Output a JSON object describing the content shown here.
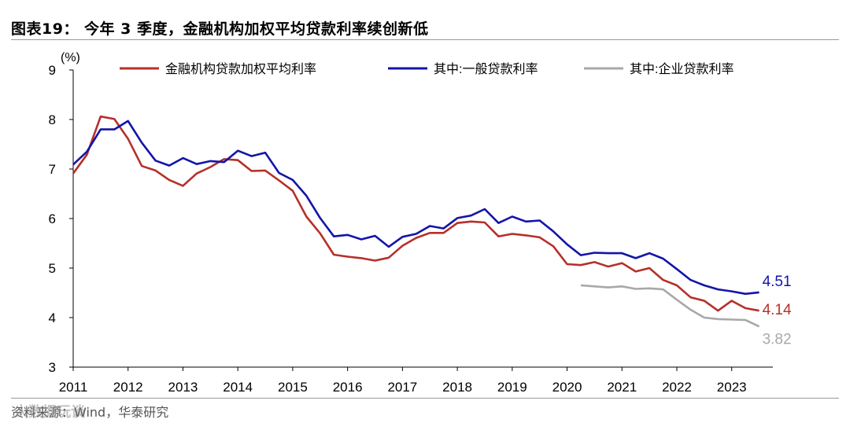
{
  "figure": {
    "title": "图表19： 今年 3 季度，金融机构加权平均贷款利率续创新低",
    "source": "资料来源：Wind，华泰研究",
    "watermark": "人数据玩谈"
  },
  "colors": {
    "series1": "#b5302a",
    "series2": "#1414a8",
    "series3": "#a8a8a8"
  },
  "chart_data": {
    "type": "line",
    "title": "今年 3 季度，金融机构加权平均贷款利率续创新低",
    "ylabel": "(%)",
    "xlabel": "",
    "ylim": [
      3,
      9
    ],
    "yticks": [
      3,
      4,
      5,
      6,
      7,
      8,
      9
    ],
    "x_range": [
      2011.0,
      2023.75
    ],
    "xticks": [
      2011,
      2012,
      2013,
      2014,
      2015,
      2016,
      2017,
      2018,
      2019,
      2020,
      2021,
      2022,
      2023
    ],
    "legend_position": "top",
    "series": [
      {
        "name": "金融机构贷款加权平均利率",
        "color_key": "series1",
        "end_label": "4.14",
        "points": [
          [
            2011.0,
            6.91
          ],
          [
            2011.25,
            7.29
          ],
          [
            2011.5,
            8.06
          ],
          [
            2011.75,
            8.01
          ],
          [
            2012.0,
            7.61
          ],
          [
            2012.25,
            7.06
          ],
          [
            2012.5,
            6.97
          ],
          [
            2012.75,
            6.78
          ],
          [
            2013.0,
            6.66
          ],
          [
            2013.25,
            6.91
          ],
          [
            2013.5,
            7.04
          ],
          [
            2013.75,
            7.2
          ],
          [
            2014.0,
            7.18
          ],
          [
            2014.25,
            6.96
          ],
          [
            2014.5,
            6.97
          ],
          [
            2014.75,
            6.77
          ],
          [
            2015.0,
            6.56
          ],
          [
            2015.25,
            6.04
          ],
          [
            2015.5,
            5.7
          ],
          [
            2015.75,
            5.27
          ],
          [
            2016.0,
            5.23
          ],
          [
            2016.25,
            5.2
          ],
          [
            2016.5,
            5.15
          ],
          [
            2016.75,
            5.21
          ],
          [
            2017.0,
            5.45
          ],
          [
            2017.25,
            5.61
          ],
          [
            2017.5,
            5.71
          ],
          [
            2017.75,
            5.71
          ],
          [
            2018.0,
            5.91
          ],
          [
            2018.25,
            5.94
          ],
          [
            2018.5,
            5.92
          ],
          [
            2018.75,
            5.64
          ],
          [
            2019.0,
            5.69
          ],
          [
            2019.25,
            5.66
          ],
          [
            2019.5,
            5.62
          ],
          [
            2019.75,
            5.44
          ],
          [
            2020.0,
            5.08
          ],
          [
            2020.25,
            5.06
          ],
          [
            2020.5,
            5.12
          ],
          [
            2020.75,
            5.03
          ],
          [
            2021.0,
            5.1
          ],
          [
            2021.25,
            4.93
          ],
          [
            2021.5,
            5.0
          ],
          [
            2021.75,
            4.76
          ],
          [
            2022.0,
            4.65
          ],
          [
            2022.25,
            4.41
          ],
          [
            2022.5,
            4.34
          ],
          [
            2022.75,
            4.14
          ],
          [
            2023.0,
            4.34
          ],
          [
            2023.25,
            4.19
          ],
          [
            2023.5,
            4.14
          ]
        ]
      },
      {
        "name": "其中:一般贷款利率",
        "color_key": "series2",
        "end_label": "4.51",
        "points": [
          [
            2011.0,
            7.09
          ],
          [
            2011.25,
            7.35
          ],
          [
            2011.5,
            7.8
          ],
          [
            2011.75,
            7.8
          ],
          [
            2012.0,
            7.97
          ],
          [
            2012.25,
            7.53
          ],
          [
            2012.5,
            7.17
          ],
          [
            2012.75,
            7.07
          ],
          [
            2013.0,
            7.22
          ],
          [
            2013.25,
            7.1
          ],
          [
            2013.5,
            7.16
          ],
          [
            2013.75,
            7.14
          ],
          [
            2014.0,
            7.37
          ],
          [
            2014.25,
            7.26
          ],
          [
            2014.5,
            7.33
          ],
          [
            2014.75,
            6.92
          ],
          [
            2015.0,
            6.78
          ],
          [
            2015.25,
            6.46
          ],
          [
            2015.5,
            6.01
          ],
          [
            2015.75,
            5.64
          ],
          [
            2016.0,
            5.67
          ],
          [
            2016.25,
            5.58
          ],
          [
            2016.5,
            5.65
          ],
          [
            2016.75,
            5.43
          ],
          [
            2017.0,
            5.63
          ],
          [
            2017.25,
            5.69
          ],
          [
            2017.5,
            5.85
          ],
          [
            2017.75,
            5.8
          ],
          [
            2018.0,
            6.01
          ],
          [
            2018.25,
            6.06
          ],
          [
            2018.5,
            6.19
          ],
          [
            2018.75,
            5.91
          ],
          [
            2019.0,
            6.04
          ],
          [
            2019.25,
            5.94
          ],
          [
            2019.5,
            5.96
          ],
          [
            2019.75,
            5.74
          ],
          [
            2020.0,
            5.48
          ],
          [
            2020.25,
            5.26
          ],
          [
            2020.5,
            5.31
          ],
          [
            2020.75,
            5.3
          ],
          [
            2021.0,
            5.3
          ],
          [
            2021.25,
            5.2
          ],
          [
            2021.5,
            5.3
          ],
          [
            2021.75,
            5.19
          ],
          [
            2022.0,
            4.98
          ],
          [
            2022.25,
            4.76
          ],
          [
            2022.5,
            4.65
          ],
          [
            2022.75,
            4.57
          ],
          [
            2023.0,
            4.53
          ],
          [
            2023.25,
            4.48
          ],
          [
            2023.5,
            4.51
          ]
        ]
      },
      {
        "name": "其中:企业贷款利率",
        "color_key": "series3",
        "end_label": "3.82",
        "points": [
          [
            2020.25,
            4.65
          ],
          [
            2020.5,
            4.63
          ],
          [
            2020.75,
            4.61
          ],
          [
            2021.0,
            4.63
          ],
          [
            2021.25,
            4.58
          ],
          [
            2021.5,
            4.59
          ],
          [
            2021.75,
            4.57
          ],
          [
            2022.0,
            4.36
          ],
          [
            2022.25,
            4.16
          ],
          [
            2022.5,
            4.0
          ],
          [
            2022.75,
            3.97
          ],
          [
            2023.0,
            3.96
          ],
          [
            2023.25,
            3.95
          ],
          [
            2023.5,
            3.82
          ]
        ]
      }
    ]
  }
}
